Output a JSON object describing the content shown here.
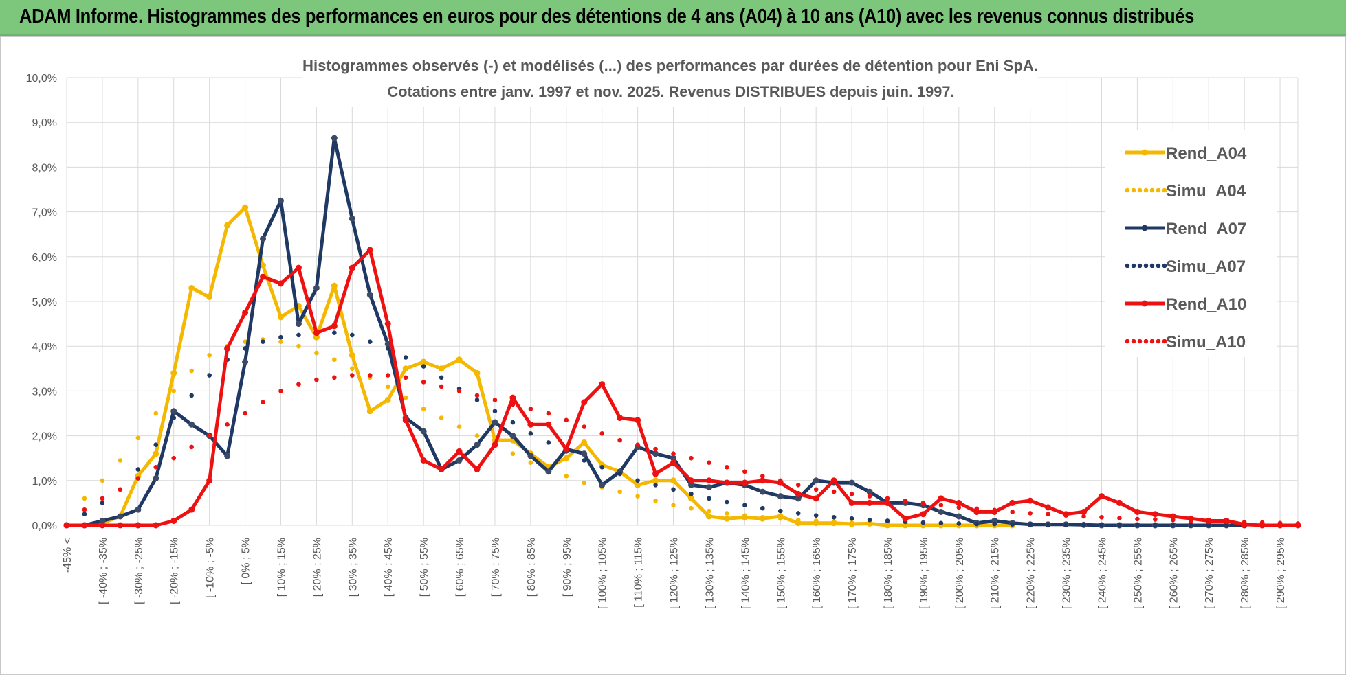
{
  "banner": {
    "title": "ADAM Informe. Histogrammes des performances en euros pour des détentions de 4 ans (A04) à 10 ans (A10) avec les revenus connus distribués"
  },
  "chart_data": {
    "type": "line",
    "title": "Histogrammes observés (-) et modélisés (...) des performances par durées de détention pour Eni SpA.",
    "subtitle": "Cotations entre janv. 1997 et nov. 2025. Revenus DISTRIBUES depuis juin. 1997.",
    "xlabel": "",
    "ylabel": "",
    "ylim": [
      0,
      10
    ],
    "yticks": [
      "0,0%",
      "1,0%",
      "2,0%",
      "3,0%",
      "4,0%",
      "5,0%",
      "6,0%",
      "7,0%",
      "8,0%",
      "9,0%",
      "10,0%"
    ],
    "grid": true,
    "legend_position": "right",
    "x_tick_labels": [
      "-45% <",
      "[ -40% ; -35%",
      "[ -30% ; -25%",
      "[ -20% ; -15%",
      "[ -10% ; -5%",
      "[ 0% ; 5%",
      "[ 10% ; 15%",
      "[ 20% ; 25%",
      "[ 30% ; 35%",
      "[ 40% ; 45%",
      "[ 50% ; 55%",
      "[ 60% ; 65%",
      "[ 70% ; 75%",
      "[ 80% ; 85%",
      "[ 90% ; 95%",
      "[ 100% ; 105%",
      "[ 110% ; 115%",
      "[ 120% ; 125%",
      "[ 130% ; 135%",
      "[ 140% ; 145%",
      "[ 150% ; 155%",
      "[ 160% ; 165%",
      "[ 170% ; 175%",
      "[ 180% ; 185%",
      "[ 190% ; 195%",
      "[ 200% ; 205%",
      "[ 210% ; 215%",
      "[ 220% ; 225%",
      "[ 230% ; 235%",
      "[ 240% ; 245%",
      "[ 250% ; 255%",
      "[ 260% ; 265%",
      "[ 270% ; 275%",
      "[ 280% ; 285%",
      "[ 290% ; 295%"
    ],
    "n_points": 70,
    "series": [
      {
        "name": "Rend_A04",
        "style": "solid",
        "color": "#f5b800",
        "values": [
          0,
          0,
          0.05,
          0.2,
          1.1,
          1.6,
          3.4,
          5.3,
          5.1,
          6.7,
          7.1,
          5.8,
          4.65,
          4.9,
          4.2,
          5.35,
          3.8,
          2.55,
          2.8,
          3.5,
          3.65,
          3.5,
          3.7,
          3.4,
          1.9,
          1.9,
          1.6,
          1.3,
          1.5,
          1.85,
          1.35,
          1.2,
          0.9,
          1.0,
          1.0,
          0.6,
          0.2,
          0.15,
          0.18,
          0.15,
          0.2,
          0.05,
          0.05,
          0.05,
          0.03,
          0.04,
          0,
          0,
          0,
          0,
          0,
          0,
          0,
          0,
          null,
          null,
          null,
          null,
          null,
          null,
          null,
          null,
          null,
          null,
          null,
          null,
          null,
          null,
          null,
          null
        ]
      },
      {
        "name": "Simu_A04",
        "style": "dotted",
        "color": "#f5b800",
        "values": [
          0,
          0.6,
          1.0,
          1.45,
          1.95,
          2.5,
          3.0,
          3.45,
          3.8,
          4.0,
          4.1,
          4.15,
          4.1,
          4.0,
          3.85,
          3.7,
          3.5,
          3.3,
          3.1,
          2.85,
          2.6,
          2.4,
          2.2,
          2.0,
          1.8,
          1.6,
          1.4,
          1.25,
          1.1,
          0.95,
          0.85,
          0.75,
          0.65,
          0.55,
          0.45,
          0.38,
          0.32,
          0.27,
          0.22,
          0.18,
          0.15,
          0.12,
          0.1,
          0.08,
          0.06,
          0.05,
          0.04,
          0.03,
          0.03,
          0.02,
          0.02,
          0.02,
          0.01,
          0.01,
          null,
          null,
          null,
          null,
          null,
          null,
          null,
          null,
          null,
          null,
          null,
          null,
          null,
          null,
          null,
          null
        ]
      },
      {
        "name": "Rend_A07",
        "style": "solid",
        "color": "#1f3864",
        "values": [
          0,
          0,
          0.1,
          0.2,
          0.35,
          1.05,
          2.55,
          2.25,
          2.0,
          1.55,
          3.65,
          6.4,
          7.25,
          4.5,
          5.3,
          8.65,
          6.85,
          5.15,
          4.05,
          2.4,
          2.1,
          1.25,
          1.45,
          1.8,
          2.3,
          2.0,
          1.55,
          1.2,
          1.7,
          1.6,
          0.9,
          1.2,
          1.75,
          1.6,
          1.5,
          0.9,
          0.85,
          0.95,
          0.9,
          0.75,
          0.65,
          0.6,
          1.0,
          0.95,
          0.95,
          0.75,
          0.5,
          0.5,
          0.45,
          0.3,
          0.2,
          0.05,
          0.1,
          0.05,
          0.02,
          0.02,
          0.02,
          0.01,
          0,
          0,
          0,
          0,
          0,
          0,
          0,
          0,
          0,
          null,
          null,
          null
        ]
      },
      {
        "name": "Simu_A07",
        "style": "dotted",
        "color": "#1f3864",
        "values": [
          0,
          0.25,
          0.5,
          0.8,
          1.25,
          1.8,
          2.4,
          2.9,
          3.35,
          3.7,
          3.95,
          4.1,
          4.2,
          4.25,
          4.3,
          4.3,
          4.25,
          4.1,
          3.95,
          3.75,
          3.55,
          3.3,
          3.05,
          2.8,
          2.55,
          2.3,
          2.05,
          1.85,
          1.65,
          1.45,
          1.3,
          1.15,
          1.0,
          0.9,
          0.8,
          0.7,
          0.6,
          0.52,
          0.45,
          0.38,
          0.32,
          0.27,
          0.22,
          0.18,
          0.15,
          0.12,
          0.1,
          0.08,
          0.06,
          0.05,
          0.04,
          0.03,
          0.03,
          0.02,
          0.02,
          0.01,
          0.01,
          0.01,
          0.01,
          0,
          0,
          0,
          0,
          0,
          0,
          0,
          0,
          null,
          null,
          null
        ]
      },
      {
        "name": "Rend_A10",
        "style": "solid",
        "color": "#ee1111",
        "values": [
          0,
          0,
          0,
          0,
          0,
          0,
          0.1,
          0.35,
          1.0,
          3.95,
          4.75,
          5.55,
          5.4,
          5.75,
          4.3,
          4.45,
          5.75,
          6.15,
          4.5,
          2.35,
          1.45,
          1.25,
          1.65,
          1.25,
          1.8,
          2.85,
          2.25,
          2.25,
          1.7,
          2.75,
          3.15,
          2.4,
          2.35,
          1.15,
          1.4,
          1.0,
          1.0,
          0.95,
          0.95,
          1.0,
          0.95,
          0.7,
          0.6,
          1.0,
          0.5,
          0.5,
          0.5,
          0.15,
          0.25,
          0.6,
          0.5,
          0.3,
          0.3,
          0.5,
          0.55,
          0.4,
          0.25,
          0.3,
          0.65,
          0.5,
          0.3,
          0.25,
          0.2,
          0.15,
          0.1,
          0.1,
          0.02,
          0,
          0,
          0
        ]
      },
      {
        "name": "Simu_A10",
        "style": "dotted",
        "color": "#ee1111",
        "values": [
          0,
          0.35,
          0.6,
          0.8,
          1.05,
          1.3,
          1.5,
          1.75,
          2.0,
          2.25,
          2.5,
          2.75,
          3.0,
          3.15,
          3.25,
          3.3,
          3.35,
          3.35,
          3.35,
          3.3,
          3.2,
          3.1,
          3.0,
          2.9,
          2.8,
          2.7,
          2.6,
          2.5,
          2.35,
          2.2,
          2.05,
          1.9,
          1.8,
          1.7,
          1.6,
          1.5,
          1.4,
          1.3,
          1.2,
          1.1,
          1.0,
          0.9,
          0.8,
          0.75,
          0.7,
          0.65,
          0.6,
          0.55,
          0.5,
          0.45,
          0.4,
          0.37,
          0.34,
          0.3,
          0.27,
          0.25,
          0.22,
          0.2,
          0.18,
          0.16,
          0.14,
          0.13,
          0.12,
          0.1,
          0.09,
          0.08,
          0.07,
          0.06,
          0.05,
          0.04
        ]
      }
    ]
  }
}
